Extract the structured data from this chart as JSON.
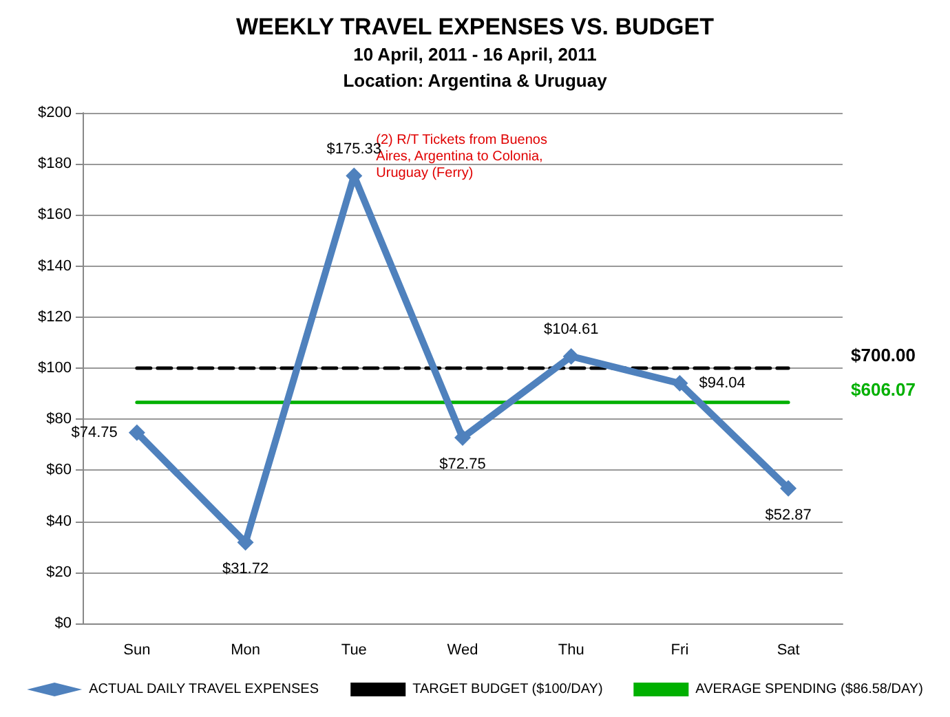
{
  "chart_data": {
    "type": "line",
    "title": "WEEKLY TRAVEL EXPENSES VS. BUDGET",
    "subtitle": "10 April, 2011 - 16 April, 2011\nLocation: Argentina & Uruguay",
    "categories": [
      "Sun",
      "Mon",
      "Tue",
      "Wed",
      "Thu",
      "Fri",
      "Sat"
    ],
    "series": [
      {
        "name": "ACTUAL DAILY TRAVEL EXPENSES",
        "color": "#4f81bd",
        "values": [
          74.75,
          31.72,
          175.33,
          72.75,
          104.61,
          94.04,
          52.87
        ],
        "value_labels": [
          "$74.75",
          "$31.72",
          "$175.33",
          "$72.75",
          "$104.61",
          "$94.04",
          "$52.87"
        ],
        "marker": "diamond",
        "line_style": "solid"
      },
      {
        "name": "TARGET BUDGET ($100/DAY)",
        "color": "#000000",
        "values": [
          100,
          100,
          100,
          100,
          100,
          100,
          100
        ],
        "marker": "none",
        "line_style": "dashed"
      },
      {
        "name": "AVERAGE SPENDING ($86.58/DAY)",
        "color": "#00b000",
        "values": [
          86.58,
          86.58,
          86.58,
          86.58,
          86.58,
          86.58,
          86.58
        ],
        "marker": "none",
        "line_style": "solid"
      }
    ],
    "annotations": [
      "$700.00",
      "$606.07",
      {
        "text": "(2) R/T Tickets from Buenos Aires, Argentina to Colonia, Uruguay (Ferry)",
        "x": "Tue",
        "y": 175.33
      }
    ],
    "ylim": [
      0,
      200
    ],
    "yticks": [
      {
        "value": 0,
        "label": "$0"
      },
      {
        "value": 20,
        "label": "$20"
      },
      {
        "value": 40,
        "label": "$40"
      },
      {
        "value": 60,
        "label": "$60"
      },
      {
        "value": 80,
        "label": "$80"
      },
      {
        "value": 100,
        "label": "$100"
      },
      {
        "value": 120,
        "label": "$120"
      },
      {
        "value": 140,
        "label": "$140"
      },
      {
        "value": 160,
        "label": "$160"
      },
      {
        "value": 180,
        "label": "$180"
      },
      {
        "value": 200,
        "label": "$200"
      }
    ],
    "grid": "y",
    "legend": "bottom"
  }
}
